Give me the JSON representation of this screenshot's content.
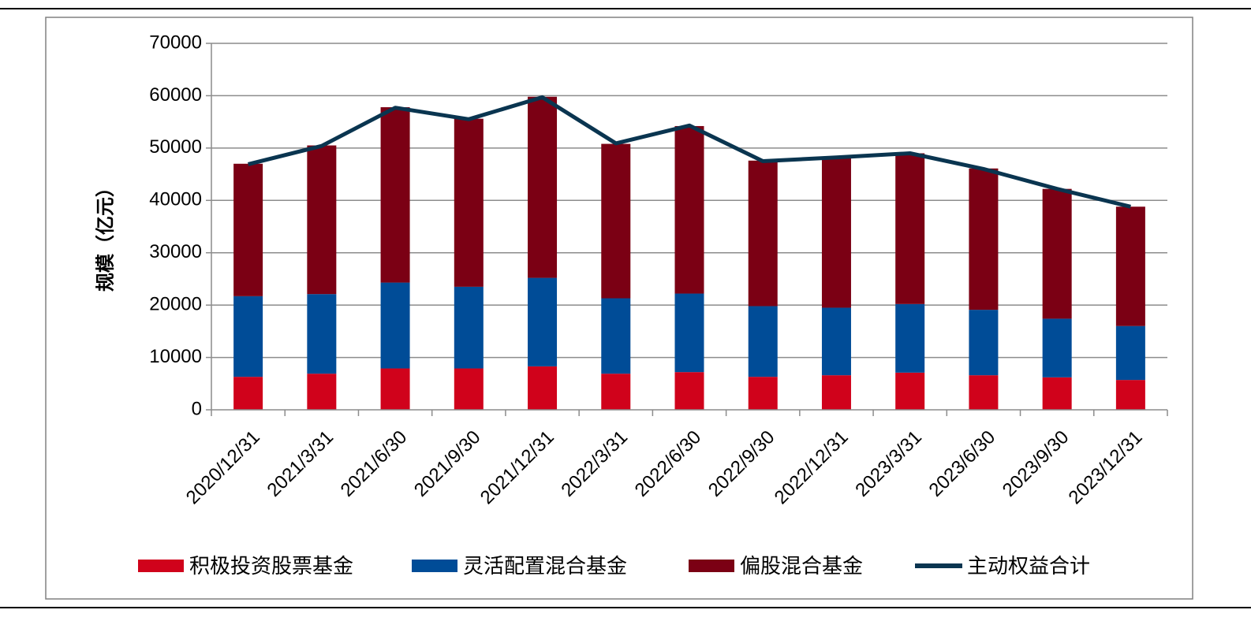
{
  "chart_data": {
    "type": "bar",
    "stacked": true,
    "title": "",
    "xlabel": "",
    "ylabel": "规模（亿元）",
    "ylim": [
      0,
      70000
    ],
    "yticks": [
      "0",
      "10000",
      "20000",
      "30000",
      "40000",
      "50000",
      "60000",
      "70000"
    ],
    "grid": true,
    "legend_position": "bottom",
    "categories": [
      "2020/12/31",
      "2021/3/31",
      "2021/6/30",
      "2021/9/30",
      "2021/12/31",
      "2022/3/31",
      "2022/6/30",
      "2022/9/30",
      "2022/12/31",
      "2023/3/31",
      "2023/6/30",
      "2023/9/30",
      "2023/12/31"
    ],
    "series": [
      {
        "name": "积极投资股票基金",
        "kind": "bar",
        "color": "#d0021b",
        "values": [
          6300,
          6900,
          7900,
          7900,
          8300,
          6900,
          7200,
          6300,
          6600,
          7100,
          6600,
          6200,
          5700
        ]
      },
      {
        "name": "灵活配置混合基金",
        "kind": "bar",
        "color": "#004c97",
        "values": [
          15400,
          15200,
          16400,
          15600,
          16900,
          14400,
          15000,
          13500,
          12900,
          13100,
          12500,
          11200,
          10300
        ]
      },
      {
        "name": "偏股混合基金",
        "kind": "bar",
        "color": "#7b0014",
        "values": [
          25300,
          28400,
          33500,
          32100,
          34600,
          29500,
          32000,
          27800,
          28700,
          28800,
          27000,
          24800,
          22800
        ]
      },
      {
        "name": "主动权益合计",
        "kind": "line",
        "color": "#0a3550",
        "values": [
          46900,
          50400,
          57700,
          55500,
          59700,
          50900,
          54300,
          47500,
          48200,
          49000,
          46000,
          42200,
          38800
        ]
      }
    ]
  }
}
